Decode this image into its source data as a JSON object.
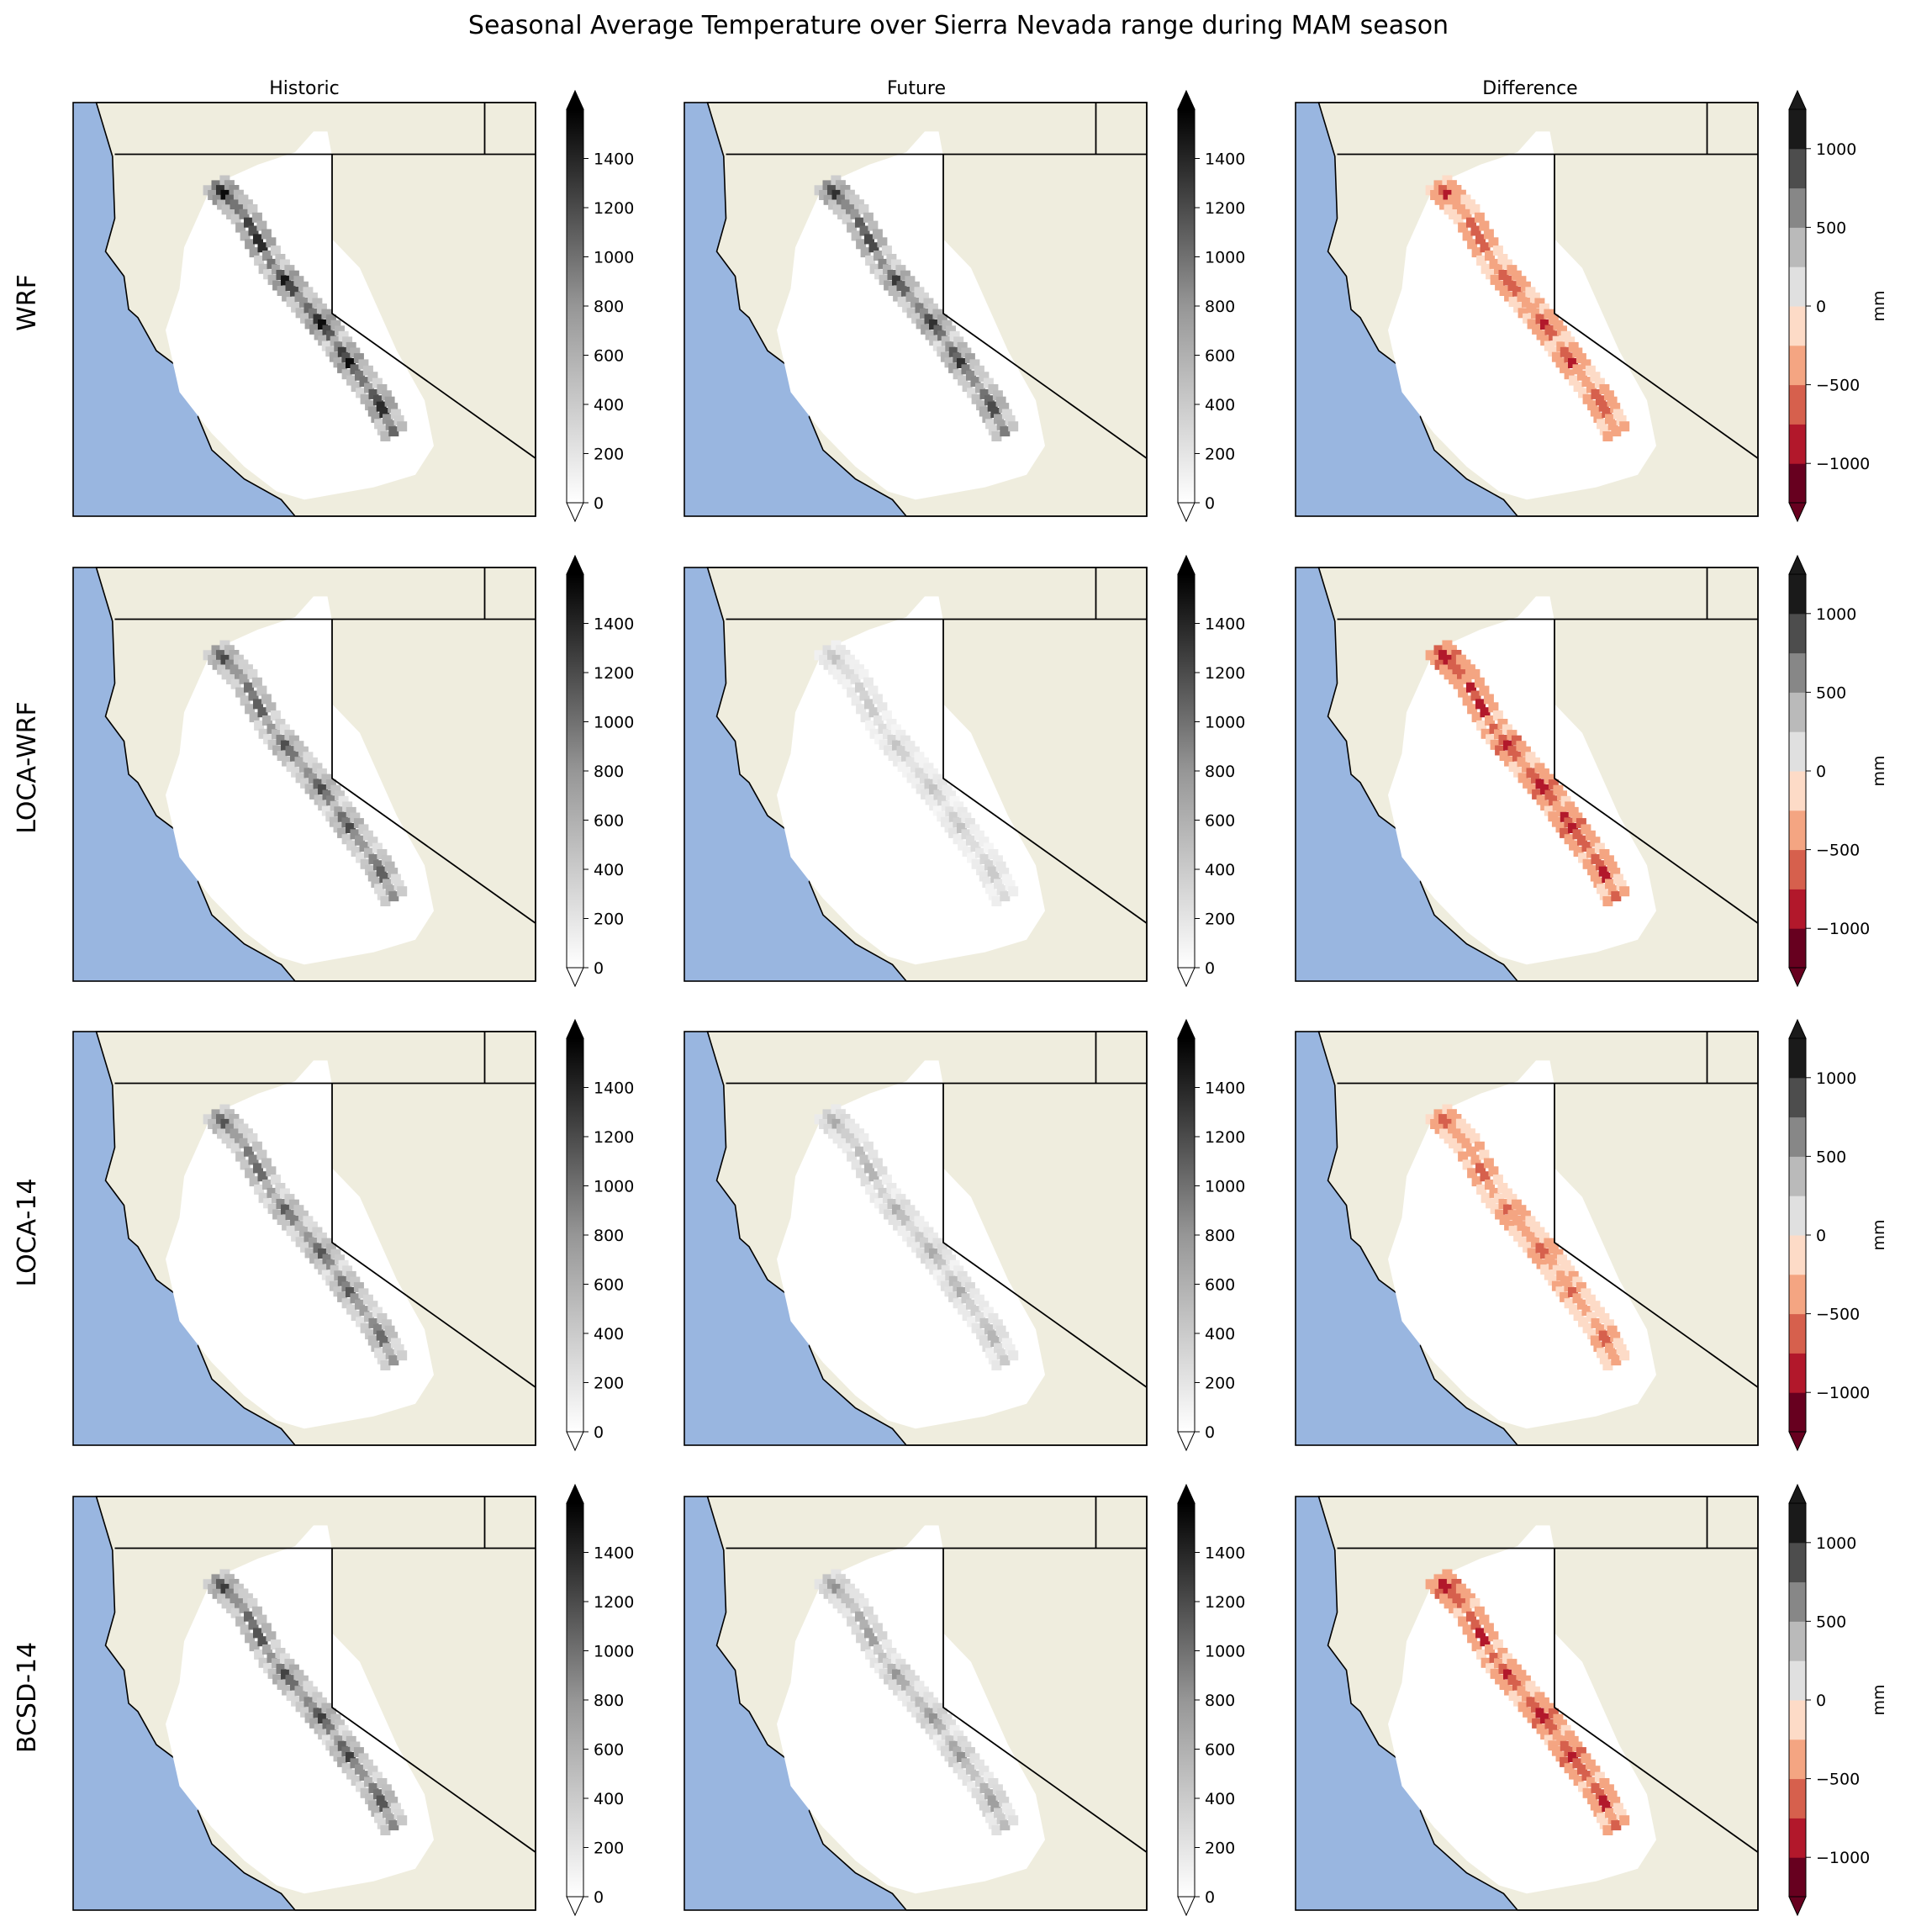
{
  "chart_data": {
    "type": "heatmap",
    "title": "Seasonal Average Temperature over Sierra Nevada range during MAM season",
    "columns": [
      "Historic",
      "Future",
      "Difference"
    ],
    "rows": [
      "WRF",
      "LOCA-WRF",
      "LOCA-14",
      "BCSD-14"
    ],
    "colorbar_label": "mm",
    "abs_colorbar": {
      "ticks": [
        0,
        200,
        400,
        600,
        800,
        1000,
        1200,
        1400
      ],
      "range": [
        0,
        1600
      ],
      "extend": "both",
      "colormap": "Greys"
    },
    "diff_colorbar": {
      "ticks": [
        -1000,
        -500,
        0,
        500,
        1000
      ],
      "tick_labels": [
        "−1000",
        "−500",
        "0",
        "500",
        "1000"
      ],
      "range": [
        -1250,
        1250
      ],
      "levels": 10,
      "extend": "both",
      "colors": [
        "#67001f",
        "#b2182b",
        "#d6604d",
        "#f4a582",
        "#fddbc7",
        "#ffffff",
        "#e0e0e0",
        "#bababa",
        "#878787",
        "#4d4d4d",
        "#1a1a1a"
      ]
    },
    "map_colors": {
      "ocean": "#99b6e0",
      "land": "#efedde",
      "domain": "#ffffff"
    },
    "panel_intensity": {
      "WRF": {
        "Historic": 1.0,
        "Future": 0.85,
        "Difference": 0.75
      },
      "LOCA-WRF": {
        "Historic": 0.75,
        "Future": 0.25,
        "Difference": 0.95
      },
      "LOCA-14": {
        "Historic": 0.7,
        "Future": 0.35,
        "Difference": 0.6
      },
      "BCSD-14": {
        "Historic": 0.8,
        "Future": 0.45,
        "Difference": 0.9
      }
    }
  }
}
